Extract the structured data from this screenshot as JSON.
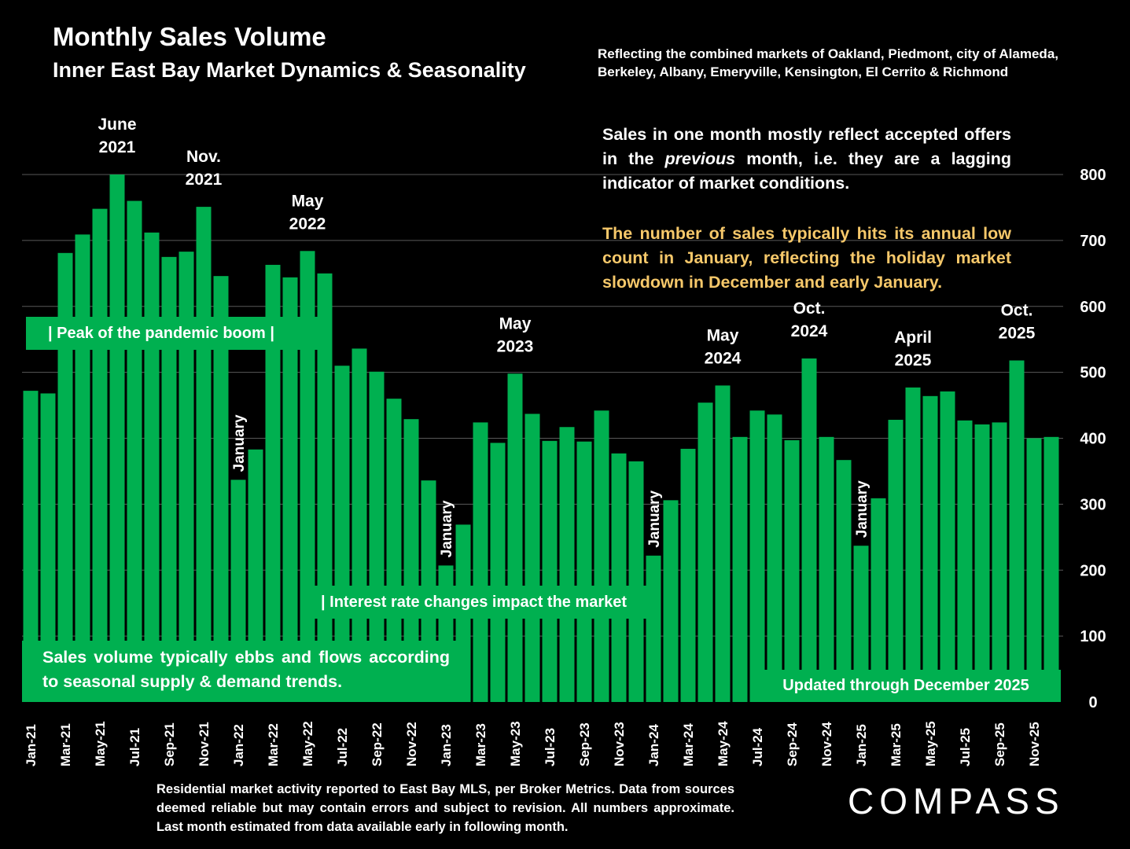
{
  "header": {
    "title": "Monthly Sales Volume",
    "subtitle": "Inner East Bay Market Dynamics & Seasonality",
    "note": "Reflecting the combined markets of Oakland, Piedmont, city of Alameda, Berkeley, Albany, Emeryville, Kensington, El Cerrito & Richmond"
  },
  "commentary": {
    "p1_a": "Sales in one month mostly reflect accepted offers in the ",
    "p1_em": "previous",
    "p1_b": " month, i.e. they are a lagging indicator of market conditions.",
    "p2": "The number of sales typically hits its annual low count in January, reflecting the holiday market slowdown in December and early January."
  },
  "boxes": {
    "peak": "|   Peak of the pandemic boom   |",
    "rates": "| Interest rate changes impact the market",
    "seasonal": "Sales volume typically ebbs and flows according to seasonal supply & demand trends.",
    "updated": "Updated through December 2025"
  },
  "footer": "Residential market activity reported to East Bay MLS, per Broker Metrics. Data from sources deemed reliable but may contain errors and subject to revision. All numbers approximate. Last month estimated from data available early in following month.",
  "logo": "COMPASS",
  "colors": {
    "bar": "#00b050",
    "grid": "#595959",
    "highlight": "#f6c86a"
  },
  "chart_data": {
    "type": "bar",
    "title": "Monthly Sales Volume",
    "ylim": [
      0,
      800
    ],
    "yticks": [
      0,
      100,
      200,
      300,
      400,
      500,
      600,
      700,
      800
    ],
    "categories": [
      "Jan-21",
      "Feb-21",
      "Mar-21",
      "Apr-21",
      "May-21",
      "Jun-21",
      "Jul-21",
      "Aug-21",
      "Sep-21",
      "Oct-21",
      "Nov-21",
      "Dec-21",
      "Jan-22",
      "Feb-22",
      "Mar-22",
      "Apr-22",
      "May-22",
      "Jun-22",
      "Jul-22",
      "Aug-22",
      "Sep-22",
      "Oct-22",
      "Nov-22",
      "Dec-22",
      "Jan-23",
      "Feb-23",
      "Mar-23",
      "Apr-23",
      "May-23",
      "Jun-23",
      "Jul-23",
      "Aug-23",
      "Sep-23",
      "Oct-23",
      "Nov-23",
      "Dec-23",
      "Jan-24",
      "Feb-24",
      "Mar-24",
      "Apr-24",
      "May-24",
      "Jun-24",
      "Jul-24",
      "Aug-24",
      "Sep-24",
      "Oct-24",
      "Nov-24",
      "Dec-24",
      "Jan-25",
      "Feb-25",
      "Mar-25",
      "Apr-25",
      "May-25",
      "Jun-25",
      "Jul-25",
      "Aug-25",
      "Sep-25",
      "Oct-25",
      "Nov-25",
      "Dec-25"
    ],
    "values": [
      472,
      468,
      681,
      709,
      748,
      800,
      760,
      712,
      675,
      683,
      751,
      646,
      337,
      383,
      663,
      644,
      684,
      650,
      510,
      536,
      501,
      460,
      429,
      336,
      207,
      269,
      424,
      393,
      498,
      437,
      396,
      417,
      395,
      442,
      377,
      365,
      222,
      306,
      384,
      454,
      480,
      402,
      442,
      436,
      397,
      521,
      402,
      367,
      237,
      309,
      428,
      477,
      464,
      471,
      427,
      421,
      424,
      518,
      400,
      402
    ],
    "annotations": [
      {
        "index": 5,
        "lines": [
          "June",
          "2021"
        ]
      },
      {
        "index": 10,
        "lines": [
          "Nov.",
          "2021"
        ]
      },
      {
        "index": 16,
        "lines": [
          "May",
          "2022"
        ]
      },
      {
        "index": 28,
        "lines": [
          "May",
          "2023"
        ]
      },
      {
        "index": 40,
        "lines": [
          "May",
          "2024"
        ]
      },
      {
        "index": 45,
        "lines": [
          "Oct.",
          "2024"
        ]
      },
      {
        "index": 51,
        "lines": [
          "April",
          "2025"
        ]
      },
      {
        "index": 57,
        "lines": [
          "Oct.",
          "2025"
        ]
      }
    ],
    "january_labels": {
      "text": "January",
      "indices": [
        12,
        24,
        36,
        48
      ]
    }
  }
}
